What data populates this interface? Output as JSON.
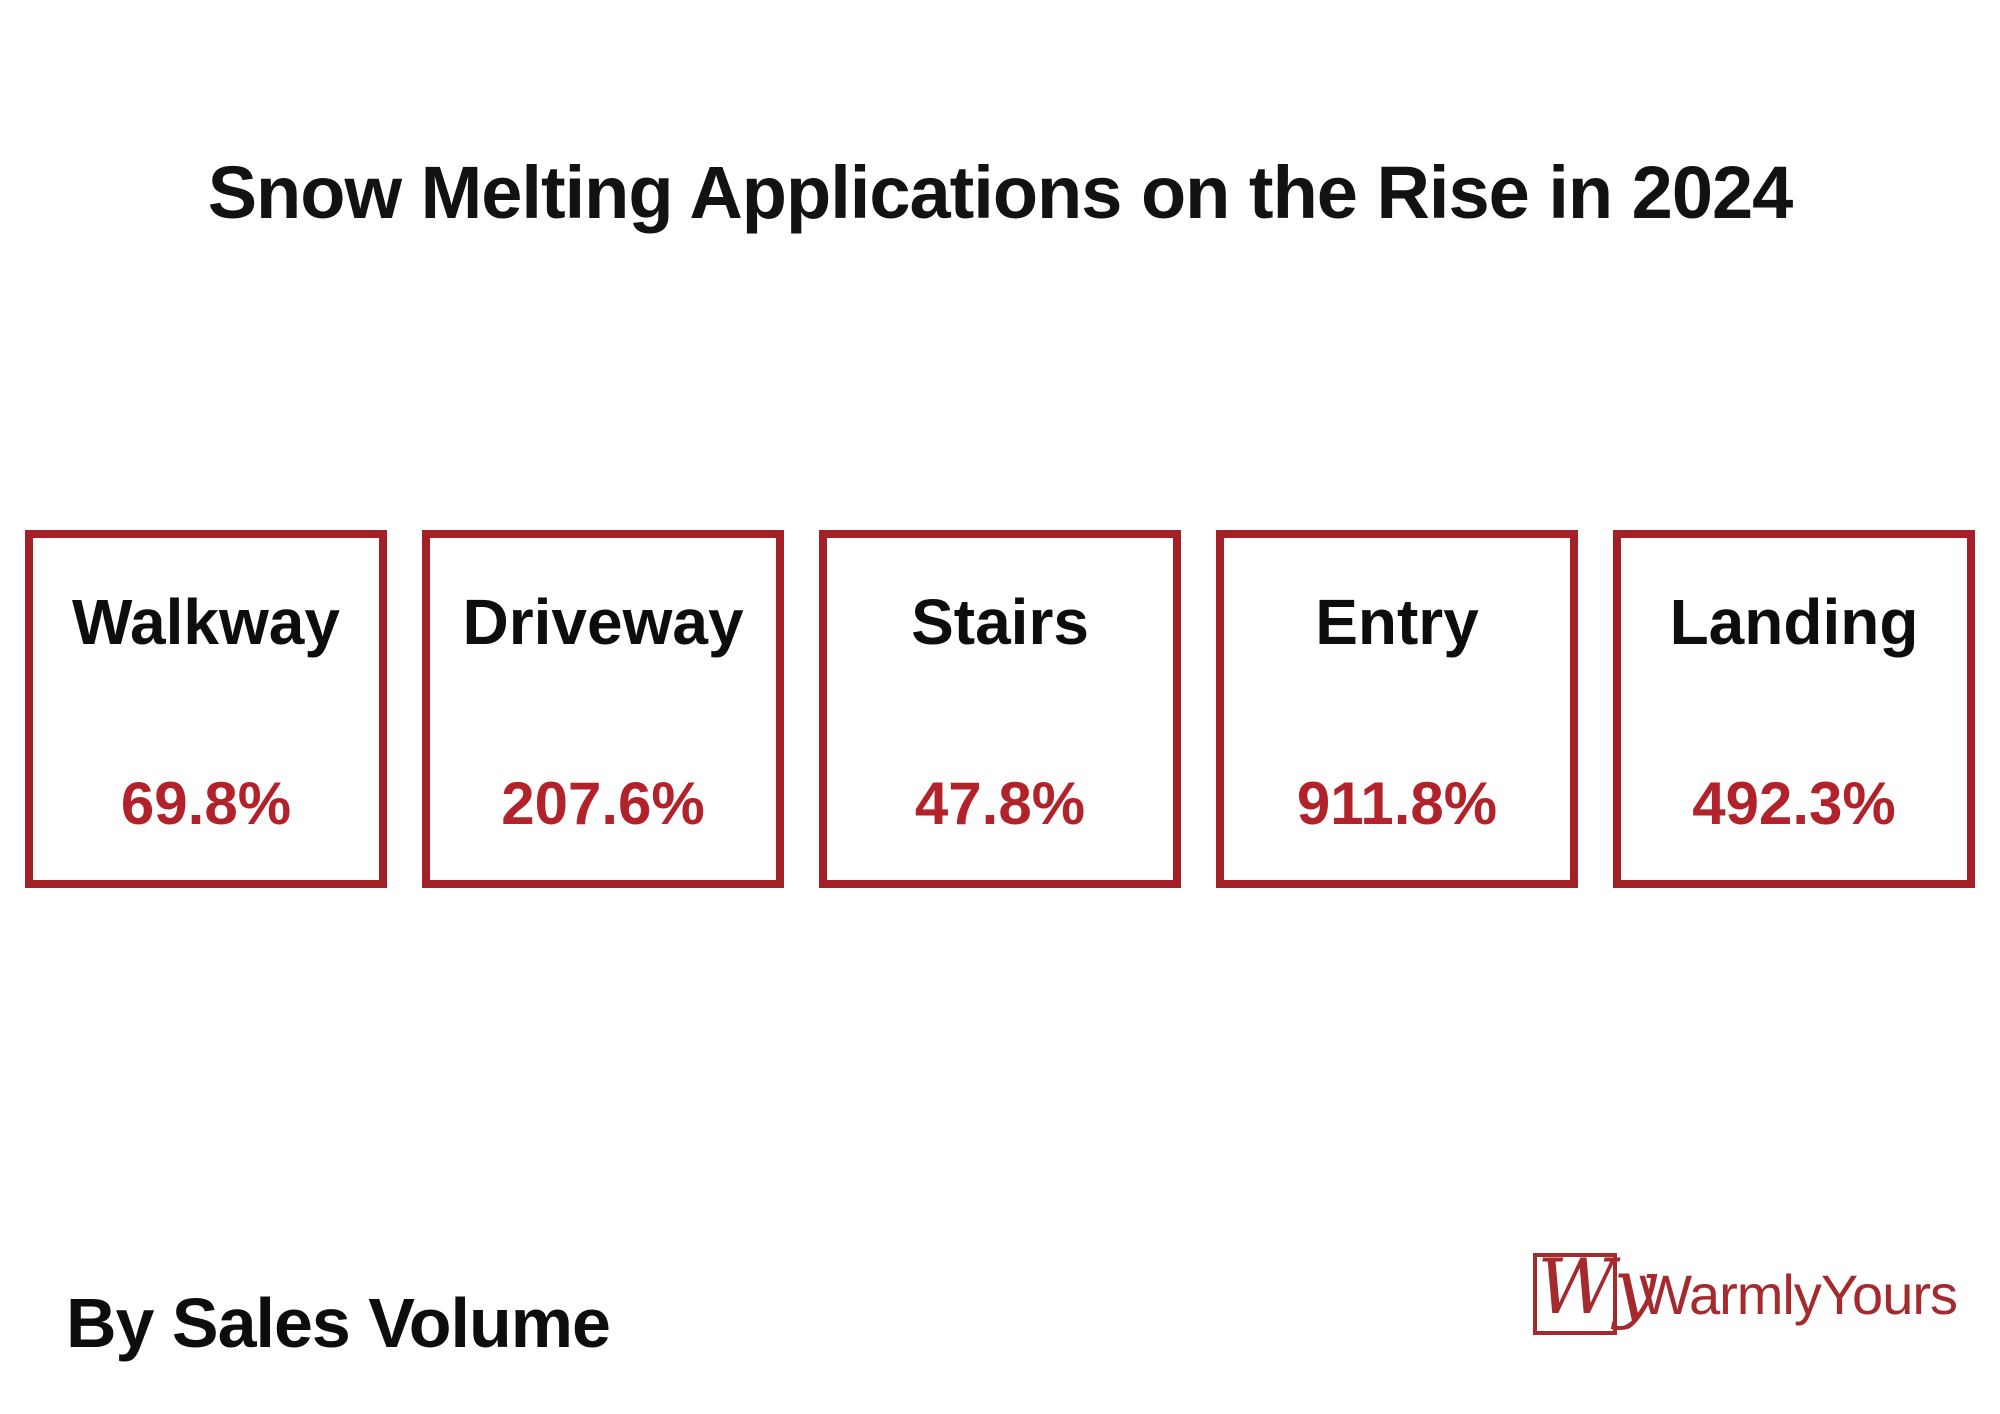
{
  "title": "Snow Melting Applications on the Rise in 2024",
  "footer": {
    "caption": "By Sales Volume"
  },
  "brand": {
    "name": "WarmlyYours",
    "monogram": "Wy"
  },
  "colors": {
    "card_border_red": "#a32026",
    "value_red": "#b2222a",
    "logo_red": "#a52a2d",
    "text_black": "#0d0d0d",
    "background": "#ffffff"
  },
  "cards": [
    {
      "label": "Walkway",
      "value": "69.8%"
    },
    {
      "label": "Driveway",
      "value": "207.6%"
    },
    {
      "label": "Stairs",
      "value": "47.8%"
    },
    {
      "label": "Entry",
      "value": "911.8%"
    },
    {
      "label": "Landing",
      "value": "492.3%"
    }
  ],
  "chart_data": {
    "type": "table",
    "title": "Snow Melting Applications on the Rise in 2024",
    "subtitle": "By Sales Volume",
    "categories": [
      "Walkway",
      "Driveway",
      "Stairs",
      "Entry",
      "Landing"
    ],
    "values": [
      69.8,
      207.6,
      47.8,
      911.8,
      492.3
    ],
    "unit": "%",
    "value_labels": [
      "69.8%",
      "207.6%",
      "47.8%",
      "911.8%",
      "492.3%"
    ],
    "layout": "five kpi cards in a single horizontal row, red outlined squares on white background"
  }
}
